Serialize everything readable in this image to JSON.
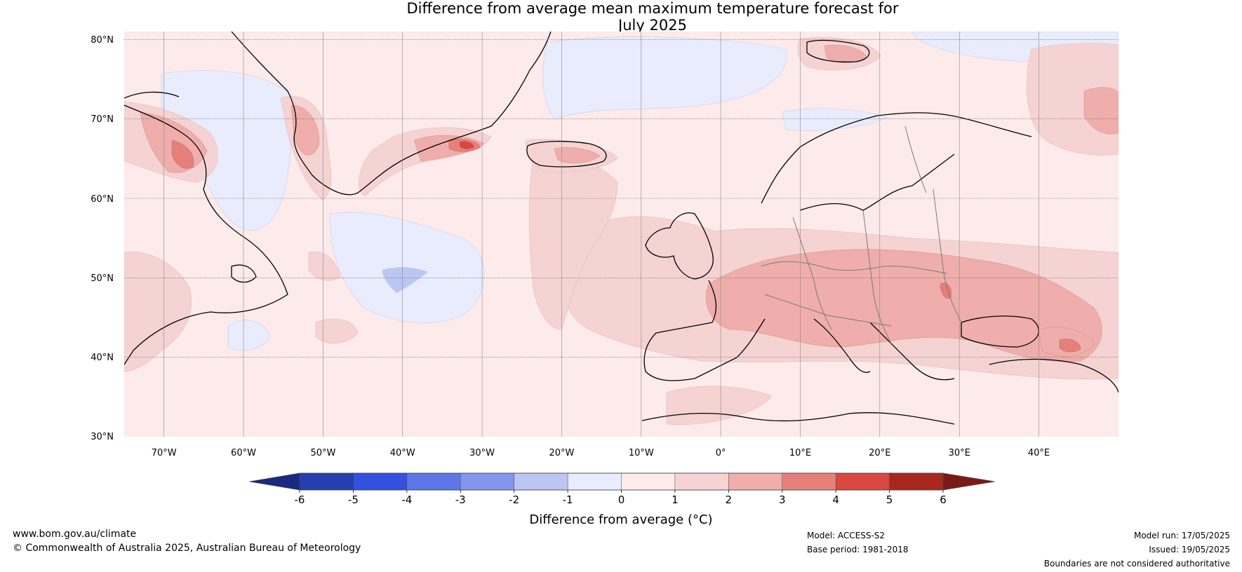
{
  "title": {
    "line1": "Difference from average mean maximum temperature forecast for",
    "line2": "July 2025"
  },
  "map": {
    "lat_labels": [
      "80°N",
      "70°N",
      "60°N",
      "50°N",
      "40°N",
      "30°N"
    ],
    "lon_labels": [
      "70°W",
      "60°W",
      "50°W",
      "40°W",
      "30°W",
      "20°W",
      "10°W",
      "0°",
      "10°E",
      "20°E",
      "30°E",
      "40°E"
    ],
    "lat_range": [
      30,
      81
    ],
    "lon_range": [
      -75,
      50
    ],
    "anomaly_regions": [
      {
        "region": "Europe (central/eastern)",
        "value_range": "2 to 3"
      },
      {
        "region": "South-east Greenland coast",
        "value_range": "3 to 5"
      },
      {
        "region": "Iceland",
        "value_range": "1 to 3"
      },
      {
        "region": "Baffin Island",
        "value_range": "2 to 4"
      },
      {
        "region": "Central North Atlantic",
        "value_range": "-1 to 0"
      },
      {
        "region": "Norwegian Sea",
        "value_range": "-1 to 0"
      }
    ]
  },
  "colorbar": {
    "ticks": [
      "-6",
      "-5",
      "-4",
      "-3",
      "-2",
      "-1",
      "0",
      "1",
      "2",
      "3",
      "4",
      "5",
      "6"
    ],
    "colors": [
      "#253fb0",
      "#3350e0",
      "#5c76e8",
      "#8496ec",
      "#bcc6f3",
      "#e8ecfc",
      "#fcebea",
      "#f6d3d3",
      "#efaeab",
      "#e6807b",
      "#d84840",
      "#a82820"
    ],
    "under_color": "#1a2a80",
    "over_color": "#7a1a18",
    "label": "Difference from average (°C)"
  },
  "footer": {
    "website": "www.bom.gov.au/climate",
    "copyright": "© Commonwealth of Australia 2025, Australian Bureau of Meteorology",
    "model": "Model: ACCESS-S2",
    "base_period": "Base period: 1981-2018",
    "model_run": "Model run: 17/05/2025",
    "issued": "Issued: 19/05/2025",
    "disclaimer": "Boundaries are not considered authoritative"
  }
}
